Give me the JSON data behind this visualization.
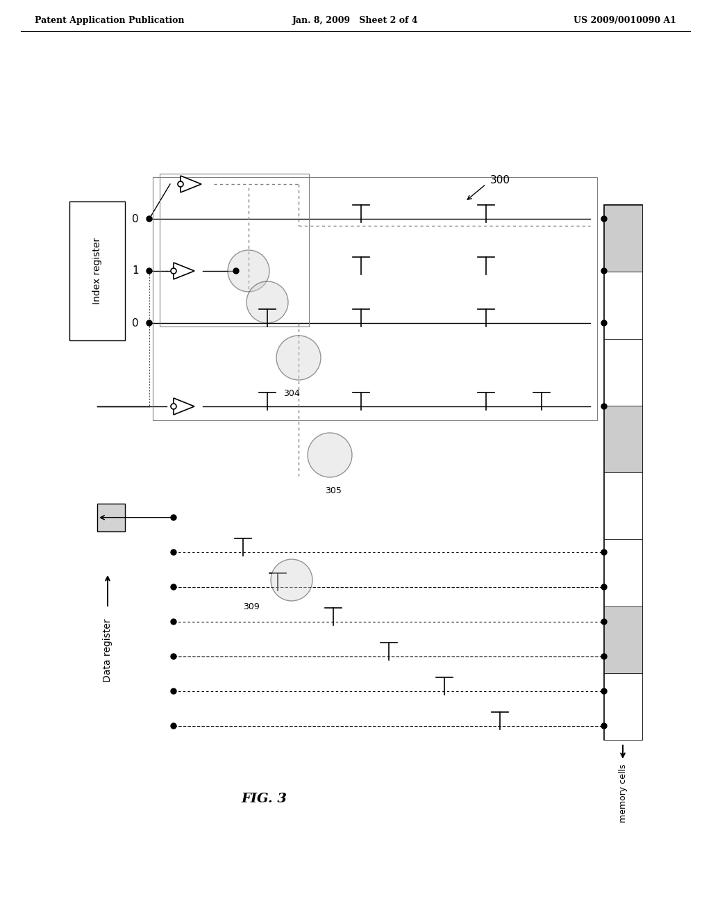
{
  "bg_color": "#ffffff",
  "header_left": "Patent Application Publication",
  "header_mid": "Jan. 8, 2009   Sheet 2 of 4",
  "header_right": "US 2009/0010090 A1",
  "fig_label": "FIG. 3",
  "label_300": "300",
  "label_304": "304",
  "label_305": "305",
  "label_309": "309",
  "label_index": "Index register",
  "label_data": "Data register",
  "label_memory": "memory cells",
  "reg_values": [
    "0",
    "1",
    "0"
  ]
}
